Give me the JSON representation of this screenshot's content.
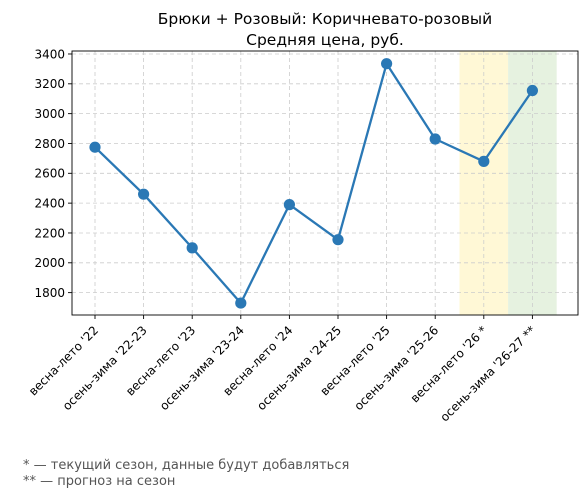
{
  "chart_data": {
    "type": "line",
    "title": [
      "Брюки + Розовый: Коричневато-розовый",
      "Средняя цена, руб."
    ],
    "categories": [
      "весна-лето '22",
      "осень-зима '22-23",
      "весна-лето '23",
      "осень-зима '23-24",
      "весна-лето '24",
      "осень-зима '24-25",
      "весна-лето '25",
      "осень-зима '25-26",
      "весна-лето '26 *",
      "осень-зима '26-27 **"
    ],
    "series": [
      {
        "values": [
          2775,
          2460,
          2100,
          1730,
          2390,
          2155,
          3335,
          2830,
          2680,
          3155
        ]
      }
    ],
    "ylim": [
      1650,
      3420
    ],
    "yticks": [
      1800,
      2000,
      2200,
      2400,
      2600,
      2800,
      3000,
      3200,
      3400
    ],
    "grid": true,
    "highlights": [
      {
        "category": "весна-лето '26 *",
        "color": "#fff8d6"
      },
      {
        "category": "осень-зима '26-27 **",
        "color": "#e6f2e0"
      }
    ],
    "line_color": "#2a78b5",
    "footnotes": [
      "* — текущий сезон, данные будут добавляться",
      "** — прогноз на сезон"
    ]
  }
}
